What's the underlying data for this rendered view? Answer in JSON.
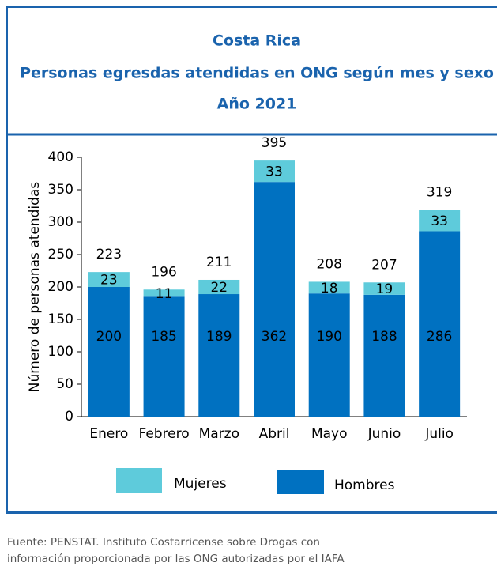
{
  "chart_data": {
    "type": "stacked_bar",
    "title": [
      "Costa Rica",
      "Personas egresdas atendidas en ONG según mes y sexo",
      "Año 2021"
    ],
    "ylabel": "Número de personas atendidas",
    "categories": [
      "Enero",
      "Febrero",
      "Marzo",
      "Abril",
      "Mayo",
      "Junio",
      "Julio"
    ],
    "series": [
      {
        "name": "Hombres",
        "color": "#0071c1",
        "values": [
          200,
          185,
          189,
          362,
          190,
          188,
          286
        ]
      },
      {
        "name": "Mujeres",
        "color": "#5ecbdb",
        "values": [
          23,
          11,
          22,
          33,
          18,
          19,
          33
        ]
      }
    ],
    "totals": [
      223,
      196,
      211,
      395,
      208,
      207,
      319
    ],
    "ylim": [
      0,
      400
    ],
    "yticks": [
      0,
      50,
      100,
      150,
      200,
      250,
      300,
      350,
      400
    ],
    "source": [
      "Fuente: PENSTAT. Instituto Costarricense sobre Drogas con",
      "información proporcionada por las ONG autorizadas por el IAFA"
    ]
  }
}
